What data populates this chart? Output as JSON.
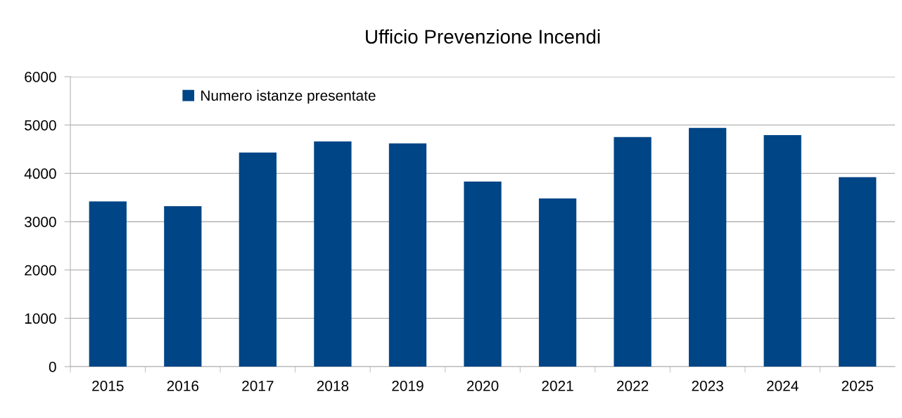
{
  "chart_data": {
    "type": "bar",
    "title": "Ufficio Prevenzione Incendi",
    "categories": [
      "2015",
      "2016",
      "2017",
      "2018",
      "2019",
      "2020",
      "2021",
      "2022",
      "2023",
      "2024",
      "2025"
    ],
    "series": [
      {
        "name": "Numero istanze presentate",
        "color": "#004586",
        "values": [
          3420,
          3320,
          4430,
          4660,
          4620,
          3830,
          3480,
          4750,
          4940,
          4790,
          3920
        ]
      }
    ],
    "ylim": [
      0,
      6000
    ],
    "yticks": [
      0,
      1000,
      2000,
      3000,
      4000,
      5000,
      6000
    ],
    "grid": "y",
    "legend": "top left"
  }
}
